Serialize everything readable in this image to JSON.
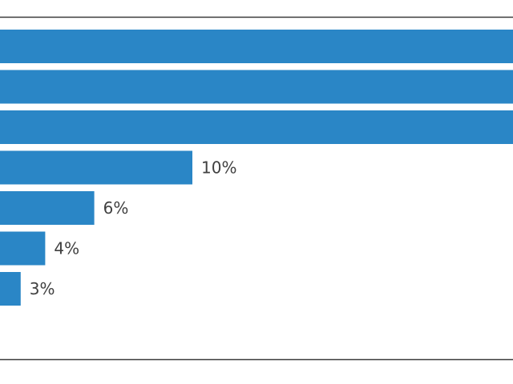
{
  "chart_data": {
    "type": "bar",
    "orientation": "horizontal",
    "bar_color": "#2a86c6",
    "value_unit": "%",
    "grid": false,
    "bars": [
      {
        "value": null,
        "label": ""
      },
      {
        "value": null,
        "label": ""
      },
      {
        "value": null,
        "label": ""
      },
      {
        "value": 10,
        "label": "10%"
      },
      {
        "value": 6,
        "label": "6%"
      },
      {
        "value": 4,
        "label": "4%"
      },
      {
        "value": 3,
        "label": "3%"
      }
    ]
  }
}
